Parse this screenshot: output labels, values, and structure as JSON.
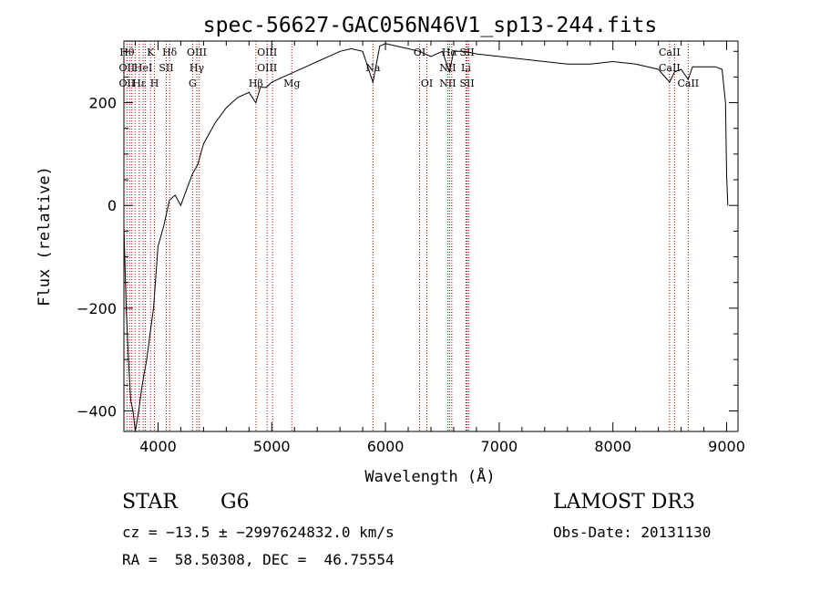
{
  "chart_data": {
    "type": "line",
    "title": "spec-56627-GAC056N46V1_sp13-244.fits",
    "xlabel": "Wavelength (Å)",
    "ylabel": "Flux (relative)",
    "xlim": [
      3700,
      9100
    ],
    "ylim": [
      -440,
      320
    ],
    "x_ticks": [
      4000,
      5000,
      6000,
      7000,
      8000,
      9000
    ],
    "y_ticks": [
      -400,
      -200,
      0,
      200
    ],
    "grid": false,
    "series": [
      {
        "color": "#000000",
        "x": [
          3700,
          3720,
          3740,
          3760,
          3780,
          3800,
          3830,
          3860,
          3900,
          3930,
          3960,
          4000,
          4050,
          4100,
          4150,
          4200,
          4250,
          4300,
          4350,
          4400,
          4450,
          4500,
          4600,
          4700,
          4800,
          4860,
          4900,
          4950,
          5000,
          5100,
          5200,
          5300,
          5400,
          5500,
          5600,
          5700,
          5800,
          5890,
          5950,
          6000,
          6100,
          6200,
          6300,
          6400,
          6500,
          6563,
          6600,
          6700,
          6800,
          7000,
          7200,
          7400,
          7600,
          7800,
          8000,
          8200,
          8400,
          8498,
          8542,
          8600,
          8662,
          8700,
          8800,
          8900,
          8960,
          8990,
          9000,
          9010
        ],
        "y": [
          -40,
          -200,
          -300,
          -380,
          -400,
          -440,
          -400,
          -350,
          -300,
          -250,
          -200,
          -80,
          -40,
          10,
          20,
          0,
          30,
          60,
          80,
          120,
          140,
          160,
          190,
          210,
          220,
          200,
          230,
          230,
          240,
          250,
          260,
          270,
          280,
          290,
          300,
          305,
          300,
          240,
          310,
          315,
          310,
          305,
          300,
          290,
          300,
          260,
          300,
          300,
          295,
          290,
          285,
          280,
          275,
          275,
          280,
          275,
          265,
          240,
          260,
          265,
          245,
          270,
          270,
          270,
          265,
          200,
          60,
          0
        ]
      }
    ],
    "lines": [
      {
        "x": 3727,
        "labels": [
          "Hθ",
          "OII",
          "OII"
        ]
      },
      {
        "x": 3750
      },
      {
        "x": 3770
      },
      {
        "x": 3798
      },
      {
        "x": 3835,
        "labels": [
          "",
          "",
          "Hε"
        ]
      },
      {
        "x": 3869,
        "labels": [
          "",
          "HeI"
        ]
      },
      {
        "x": 3889
      },
      {
        "x": 3934,
        "labels": [
          "K"
        ]
      },
      {
        "x": 3969,
        "labels": [
          "",
          "",
          "H"
        ]
      },
      {
        "x": 4072,
        "labels": [
          "",
          "SII"
        ]
      },
      {
        "x": 4102,
        "labels": [
          "Hδ"
        ]
      },
      {
        "x": 4304,
        "labels": [
          "",
          "",
          "G"
        ]
      },
      {
        "x": 4341,
        "labels": [
          "OIII",
          "Hγ"
        ]
      },
      {
        "x": 4363
      },
      {
        "x": 4861,
        "labels": [
          "",
          "",
          "Hβ"
        ]
      },
      {
        "x": 4959,
        "labels": [
          "OIII",
          "OIII"
        ]
      },
      {
        "x": 5007
      },
      {
        "x": 5176,
        "labels": [
          "",
          "",
          "Mg"
        ]
      },
      {
        "x": 5890,
        "labels": [
          "",
          "Na"
        ]
      },
      {
        "x": 6300,
        "labels": [
          "OI"
        ]
      },
      {
        "x": 6364,
        "labels": [
          "",
          "",
          "OI"
        ]
      },
      {
        "x": 6548,
        "labels": [
          "",
          "NII",
          "NII"
        ]
      },
      {
        "x": 6563,
        "labels": [
          "Hα"
        ]
      },
      {
        "x": 6583
      },
      {
        "x": 6708,
        "labels": [
          "",
          "Li"
        ]
      },
      {
        "x": 6717,
        "labels": [
          "SII",
          "",
          "SII"
        ]
      },
      {
        "x": 6731
      },
      {
        "x": 8498,
        "labels": [
          "CaII",
          "CaII"
        ]
      },
      {
        "x": 8542
      },
      {
        "x": 8662,
        "labels": [
          "",
          "",
          "CaII"
        ]
      }
    ]
  },
  "info": {
    "object_class": "STAR",
    "subclass": "G6",
    "survey": "LAMOST DR3",
    "redshift_line": "cz = −13.5 ± −2997624832.0 km/s",
    "obs_date": "Obs-Date: 20131130",
    "coords": "RA =  58.50308, DEC =  46.75554"
  }
}
